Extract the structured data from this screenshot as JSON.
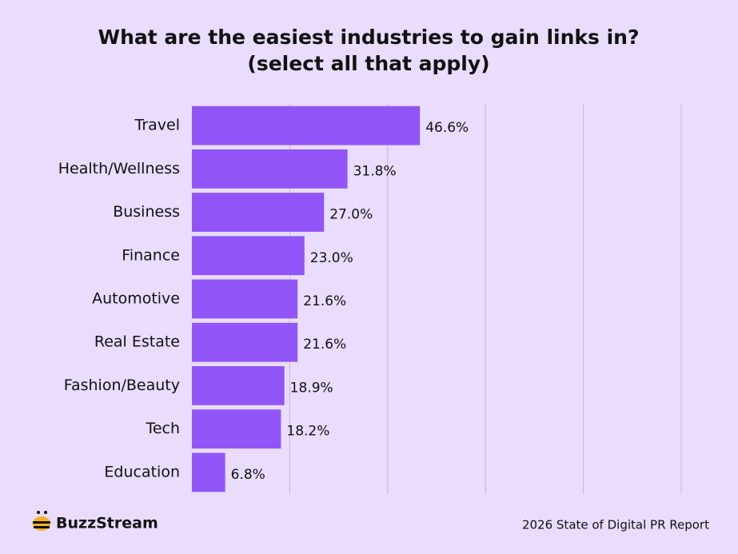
{
  "chart_data": {
    "type": "bar",
    "orientation": "horizontal",
    "title": "What are the easiest industries to gain links in?",
    "subtitle": "(select all that apply)",
    "categories": [
      "Travel",
      "Health/Wellness",
      "Business",
      "Finance",
      "Automotive",
      "Real Estate",
      "Fashion/Beauty",
      "Tech",
      "Education"
    ],
    "values": [
      46.6,
      31.8,
      27.0,
      23.0,
      21.6,
      21.6,
      18.9,
      18.2,
      6.8
    ],
    "value_labels": [
      "46.6%",
      "31.8%",
      "27.0%",
      "23.0%",
      "21.6%",
      "21.6%",
      "18.9%",
      "18.2%",
      "6.8%"
    ],
    "color": "#9155f7",
    "xlim": [
      0,
      100
    ],
    "xticks": [
      0,
      20,
      40,
      60,
      80,
      100
    ],
    "grid": true
  },
  "footer": {
    "brand": "BuzzStream",
    "source": "2026 State of Digital PR Report"
  }
}
